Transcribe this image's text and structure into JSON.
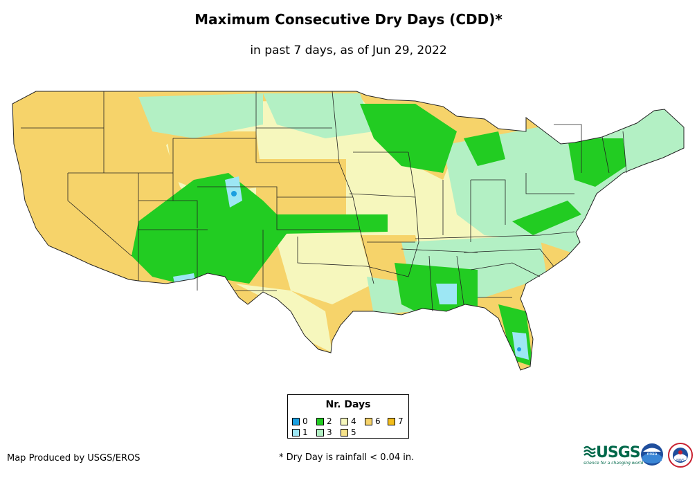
{
  "title": "Maximum Consecutive Dry Days (CDD)*",
  "subtitle": "in past 7 days, as of Jun 29, 2022",
  "legend": {
    "title": "Nr. Days",
    "items": [
      {
        "label": "0",
        "color": "#1a9fe0"
      },
      {
        "label": "1",
        "color": "#9de7f4"
      },
      {
        "label": "2",
        "color": "#22cc22"
      },
      {
        "label": "3",
        "color": "#b3f0c4"
      },
      {
        "label": "4",
        "color": "#f6f7bd"
      },
      {
        "label": "5",
        "color": "#f7e38a"
      },
      {
        "label": "6",
        "color": "#f6d36a"
      },
      {
        "label": "7",
        "color": "#f2bd1c"
      }
    ]
  },
  "footer": {
    "producer": "Map Produced by USGS/EROS",
    "footnote": "* Dry Day is rainfall < 0.04 in."
  },
  "logos": {
    "usgs": "USGS",
    "usgs_tagline": "science for a changing world",
    "noaa": "noaa",
    "nws": "NWS"
  }
}
